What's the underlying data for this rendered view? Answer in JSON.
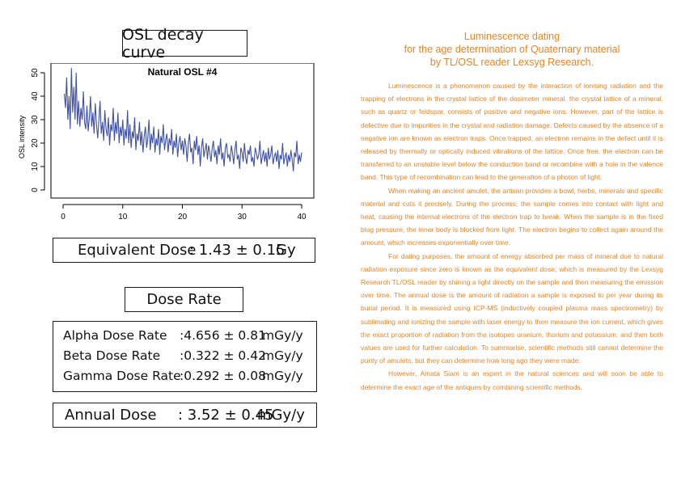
{
  "osl_title": "OSL decay curve",
  "equivalent_dose": {
    "label": "Equivalent Dose",
    "value": ": 1.43 ± 0.15",
    "unit": "Gy"
  },
  "dose_rate": {
    "title": "Dose Rate",
    "rows": [
      {
        "label": "Alpha Dose Rate",
        "value": ":4.656 ± 0.81",
        "unit": "mGy/y"
      },
      {
        "label": "Beta Dose Rate",
        "value": ":0.322 ± 0.42",
        "unit": "mGy/y"
      },
      {
        "label": "Gamma Dose Rate",
        "value": ":0.292 ± 0.08",
        "unit": "mGy/y"
      }
    ]
  },
  "annual_dose": {
    "label": "Annual Dose",
    "value": ": 3.52 ± 0.45",
    "unit": "mGy/y"
  },
  "article": {
    "heading": [
      "Luminescence dating",
      "for the age determination of Quaternary material",
      "by TL/OSL reader Lexsyg Research."
    ],
    "paragraphs": [
      "Luminescence is a phenomenon caused by the interaction of ionising radiation and the trapping of electrons in the crystal lattice of the dosimeter mineral. the crystal lattice of a mineral, such as quartz or feldspar, consists of positive and negative ions. However, part of the lattice is defective due to impurities in the crystal and radiation damage. Defects caused by the absence of a negative ion are known as electron traps. Once trapped, an electron remains in the defect until it is released by thermally or optically induced vibrations of the lattice. Once free, the electron can be transferred to an unstable level below the conduction band or recombine with a hole in the valence band. This type of recombination can lead to the generation of a photon of light.",
      "When making an ancient amulet, the artisan provides a bowl, herbs, minerals and specific material and cuts it precisely. During the process, the sample comes into contact with light and heat, causing the internal electrons of the electron trap to break. When the sample is in the fixed blog pressure, the inner body is blocked from light. The electron begins to collect again around the amount, which increases exponentially over time.",
      "For dating purposes, the amount of energy absorbed per mass of mineral due to natural radiation exposure since zero is known as the equivalent dose, which is measured by the Lexsyg Research TL/OSL reader by shining a light directly on the sample and then measuring the emission over time. The annual dose is the amount of radiation a sample is exposed to per year during its burial period. It is measured using ICP-MS (inductively coupled plasma mass spectrometry) by sublimating and ionizing the sample with laser energy to then measure the ion current, which gives the exact proportion of radiation from the isotopes uranium, thorium and potassium, and then both values are used for further calculation. To summarise, scientific methods still cannot determine the purity of amulets, but they can determine how long ago they were made.",
      "However, Amata Siam is an expert in the natural sciences and will soon be able to determine the exact age of the antiques by combining scientific methods."
    ]
  },
  "chart_data": {
    "type": "line",
    "title": "Natural OSL #4",
    "xlabel": "",
    "ylabel": "OSL intensity",
    "xlim": [
      0,
      40
    ],
    "ylim": [
      0,
      50
    ],
    "xticks": [
      0,
      10,
      20,
      30,
      40
    ],
    "yticks": [
      0,
      10,
      20,
      30,
      40,
      50
    ],
    "color": "#3e50a8",
    "grid": false,
    "x": [
      0.2,
      0.4,
      0.6,
      0.8,
      1.0,
      1.2,
      1.4,
      1.6,
      1.8,
      2.0,
      2.2,
      2.4,
      2.6,
      2.8,
      3.0,
      3.2,
      3.4,
      3.6,
      3.8,
      4.0,
      4.2,
      4.4,
      4.6,
      4.8,
      5.0,
      5.2,
      5.4,
      5.6,
      5.8,
      6.0,
      6.2,
      6.4,
      6.6,
      6.8,
      7.0,
      7.2,
      7.4,
      7.6,
      7.8,
      8.0,
      8.2,
      8.4,
      8.6,
      8.8,
      9.0,
      9.2,
      9.4,
      9.6,
      9.8,
      10.0,
      10.2,
      10.4,
      10.6,
      10.8,
      11.0,
      11.2,
      11.4,
      11.6,
      11.8,
      12.0,
      12.2,
      12.4,
      12.6,
      12.8,
      13.0,
      13.2,
      13.4,
      13.6,
      13.8,
      14.0,
      14.2,
      14.4,
      14.6,
      14.8,
      15.0,
      15.2,
      15.4,
      15.6,
      15.8,
      16.0,
      16.2,
      16.4,
      16.6,
      16.8,
      17.0,
      17.2,
      17.4,
      17.6,
      17.8,
      18.0,
      18.2,
      18.4,
      18.6,
      18.8,
      19.0,
      19.2,
      19.4,
      19.6,
      19.8,
      20.0,
      20.2,
      20.4,
      20.6,
      20.8,
      21.0,
      21.2,
      21.4,
      21.6,
      21.8,
      22.0,
      22.2,
      22.4,
      22.6,
      22.8,
      23.0,
      23.2,
      23.4,
      23.6,
      23.8,
      24.0,
      24.2,
      24.4,
      24.6,
      24.8,
      25.0,
      25.2,
      25.4,
      25.6,
      25.8,
      26.0,
      26.2,
      26.4,
      26.6,
      26.8,
      27.0,
      27.2,
      27.4,
      27.6,
      27.8,
      28.0,
      28.2,
      28.4,
      28.6,
      28.8,
      29.0,
      29.2,
      29.4,
      29.6,
      29.8,
      30.0,
      30.2,
      30.4,
      30.6,
      30.8,
      31.0,
      31.2,
      31.4,
      31.6,
      31.8,
      32.0,
      32.2,
      32.4,
      32.6,
      32.8,
      33.0,
      33.2,
      33.4,
      33.6,
      33.8,
      34.0,
      34.2,
      34.4,
      34.6,
      34.8,
      35.0,
      35.2,
      35.4,
      35.6,
      35.8,
      36.0,
      36.2,
      36.4,
      36.6,
      36.8,
      37.0,
      37.2,
      37.4,
      37.6,
      37.8,
      38.0,
      38.2,
      38.4,
      38.6,
      38.8,
      39.0,
      39.2,
      39.4,
      39.6,
      39.8,
      40.0
    ],
    "y": [
      41,
      35,
      48,
      30,
      40,
      26,
      52,
      33,
      44,
      30,
      50,
      28,
      38,
      27,
      35,
      30,
      42,
      29,
      26,
      36,
      25,
      31,
      40,
      27,
      33,
      24,
      37,
      28,
      22,
      30,
      38,
      24,
      29,
      21,
      34,
      26,
      23,
      31,
      19,
      28,
      25,
      35,
      21,
      29,
      24,
      33,
      20,
      27,
      23,
      30,
      19,
      26,
      22,
      34,
      20,
      28,
      18,
      25,
      22,
      31,
      17,
      24,
      21,
      29,
      19,
      25,
      16,
      23,
      27,
      18,
      22,
      30,
      17,
      24,
      20,
      27,
      16,
      22,
      19,
      26,
      15,
      23,
      20,
      28,
      17,
      21,
      24,
      16,
      22,
      19,
      26,
      15,
      21,
      18,
      24,
      14,
      20,
      23,
      17,
      21,
      15,
      22,
      19,
      12,
      20,
      24,
      16,
      18,
      11,
      21,
      17,
      23,
      15,
      19,
      10,
      18,
      22,
      14,
      17,
      20,
      13,
      19,
      16,
      12,
      18,
      21,
      14,
      17,
      11,
      19,
      15,
      22,
      13,
      16,
      10,
      18,
      20,
      14,
      15,
      12,
      19,
      16,
      11,
      17,
      21,
      13,
      15,
      9,
      18,
      16,
      12,
      20,
      14,
      11,
      17,
      15,
      19,
      12,
      14,
      10,
      18,
      16,
      13,
      15,
      21,
      11,
      14,
      17,
      12,
      16,
      10,
      18,
      13,
      15,
      19,
      11,
      14,
      16,
      12,
      17,
      9,
      15,
      13,
      20,
      11,
      14,
      16,
      10,
      15,
      12,
      17,
      13,
      8,
      16,
      14,
      21,
      11,
      15,
      12,
      16
    ]
  }
}
